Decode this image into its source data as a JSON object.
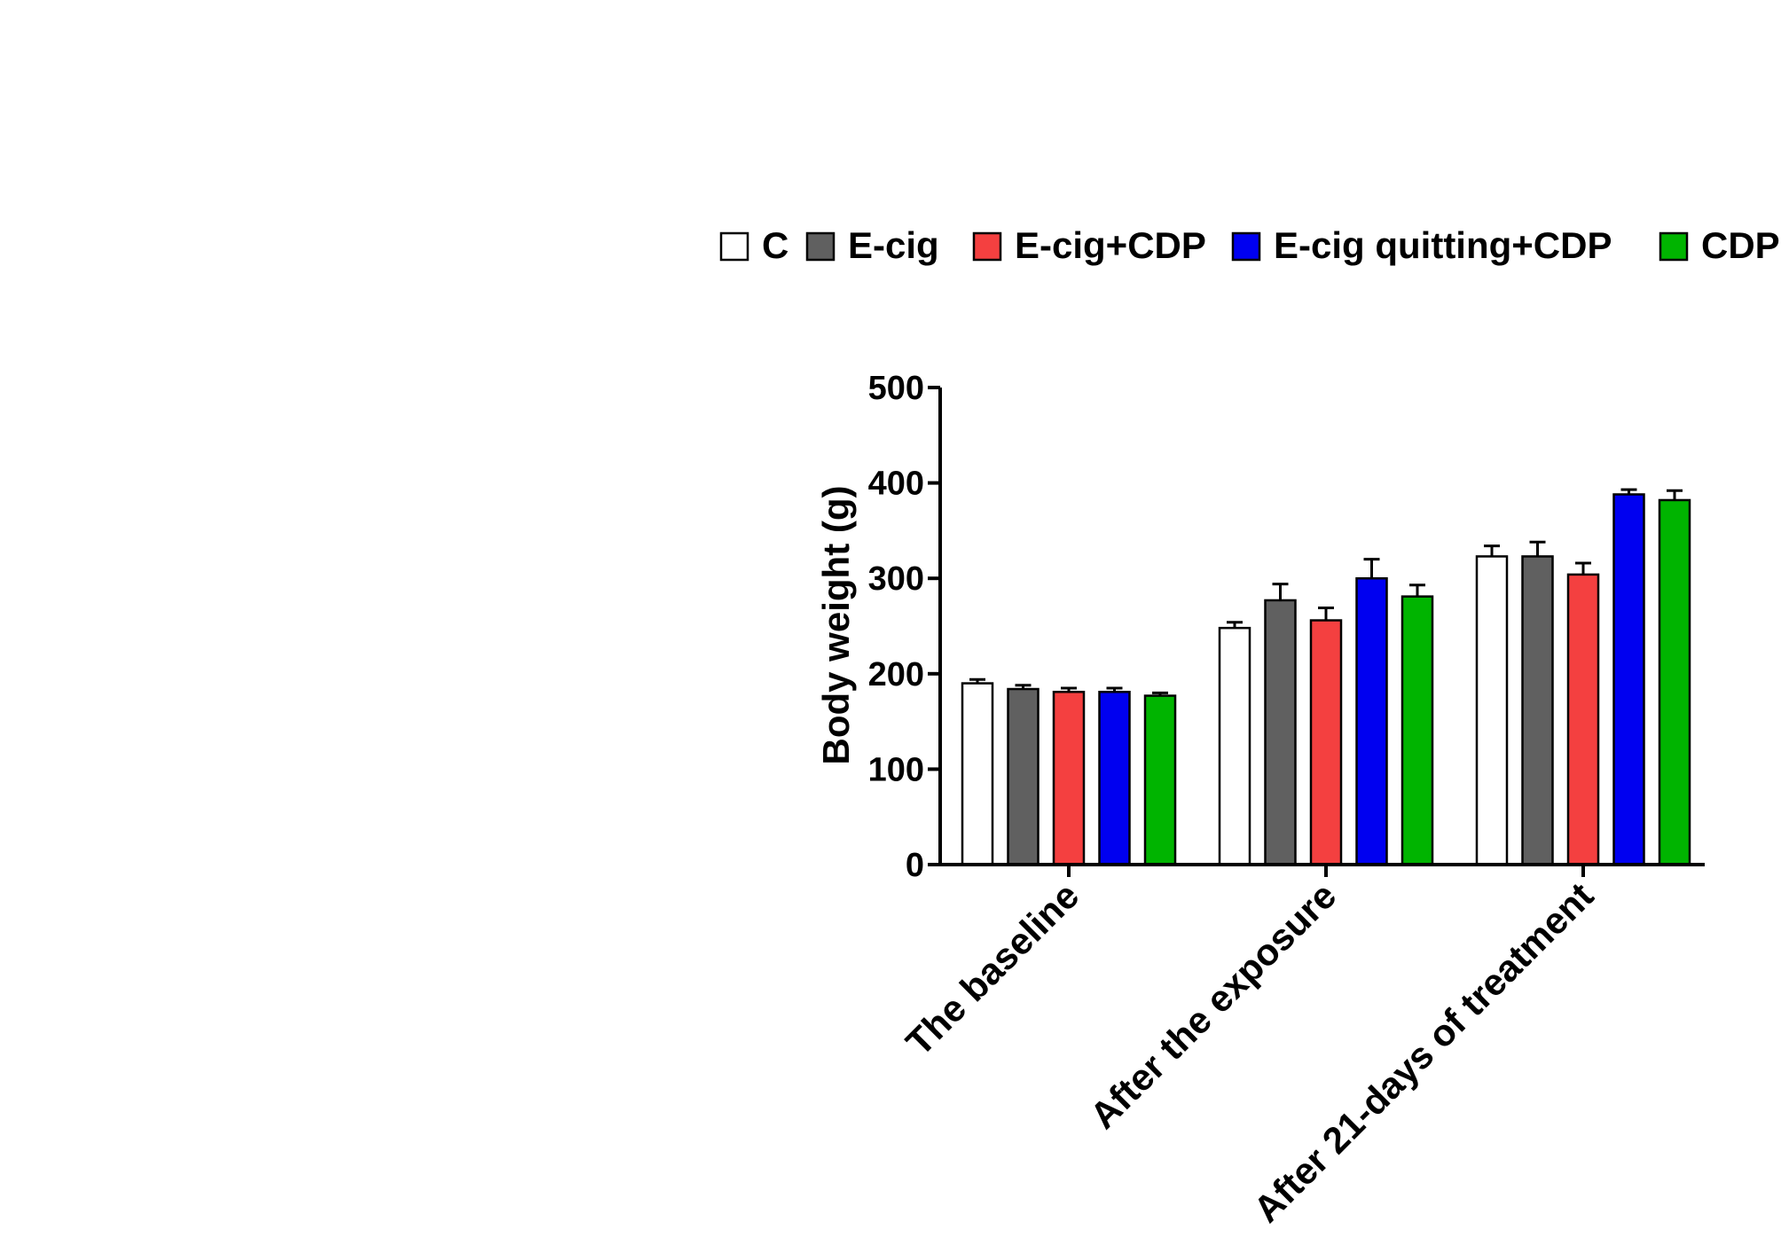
{
  "chart_data": {
    "type": "bar",
    "title": "",
    "xlabel": "",
    "ylabel": "Body weight (g)",
    "ylim": [
      0,
      500
    ],
    "yticks": [
      0,
      100,
      200,
      300,
      400,
      500
    ],
    "categories": [
      "The baseline",
      "After the exposure",
      "After 21-days of treatment"
    ],
    "grid": false,
    "legend_position": "top",
    "series": [
      {
        "name": "C",
        "color": "#ffffff",
        "values": [
          190,
          248,
          323
        ],
        "errors": [
          4,
          6,
          11
        ]
      },
      {
        "name": "E-cig",
        "color": "#606060",
        "values": [
          184,
          277,
          323
        ],
        "errors": [
          4,
          17,
          15
        ]
      },
      {
        "name": "E-cig+CDP",
        "color": "#f44040",
        "values": [
          181,
          256,
          304
        ],
        "errors": [
          4,
          13,
          12
        ]
      },
      {
        "name": "E-cig quitting+CDP",
        "color": "#0000f0",
        "values": [
          181,
          300,
          388
        ],
        "errors": [
          4,
          20,
          5
        ]
      },
      {
        "name": "CDP",
        "color": "#00b400",
        "values": [
          177,
          281,
          382
        ],
        "errors": [
          3,
          12,
          10
        ]
      }
    ]
  }
}
